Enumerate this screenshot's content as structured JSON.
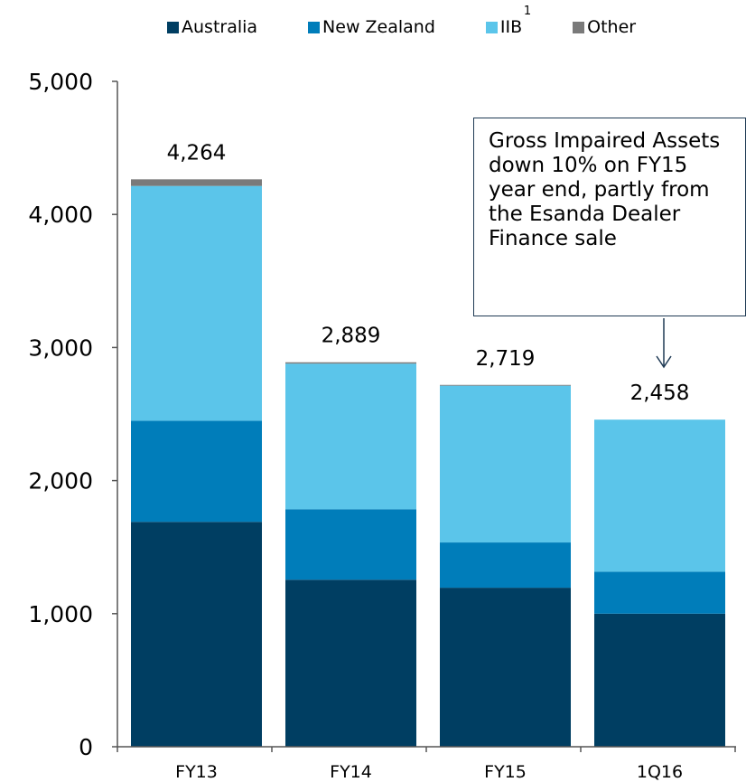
{
  "chart_data": {
    "type": "bar",
    "stacked": true,
    "categories": [
      "FY13",
      "FY14",
      "FY15",
      "1Q16"
    ],
    "series": [
      {
        "name": "Australia",
        "color": "#003e62",
        "values": [
          1690,
          1255,
          1195,
          1000
        ]
      },
      {
        "name": "New Zealand",
        "color": "#007dba",
        "values": [
          760,
          530,
          340,
          315
        ]
      },
      {
        "name": "IIB",
        "color": "#5bc5ea",
        "values": [
          1764,
          1094,
          1178,
          1143
        ]
      },
      {
        "name": "Other",
        "color": "#7a7a7a",
        "values": [
          50,
          10,
          6,
          0
        ]
      }
    ],
    "totals": [
      "4,264",
      "2,889",
      "2,719",
      "2,458"
    ],
    "yticks": [
      "0",
      "1,000",
      "2,000",
      "3,000",
      "4,000",
      "5,000"
    ],
    "ylim": [
      0,
      5000
    ],
    "legend_position": "top",
    "grid": false
  },
  "legend": {
    "items": [
      {
        "label": "Australia",
        "color": "#003e62",
        "sup": ""
      },
      {
        "label": "New Zealand",
        "color": "#007dba",
        "sup": ""
      },
      {
        "label": "IIB",
        "color": "#5bc5ea",
        "sup": "1"
      },
      {
        "label": "Other",
        "color": "#7a7a7a",
        "sup": ""
      }
    ]
  },
  "annotation": {
    "text": "Gross Impaired Assets down 10% on FY15 year end, partly from the Esanda Dealer Finance sale"
  }
}
